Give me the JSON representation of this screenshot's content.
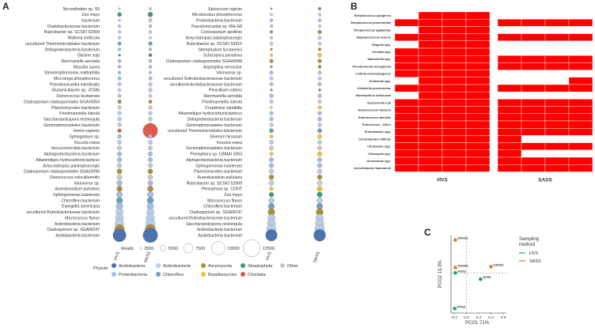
{
  "panels": {
    "a": "A",
    "b": "B",
    "c": "C"
  },
  "colors": {
    "Acidobacteria": "#4a72b0",
    "Proteobacteria": "#a9bbe4",
    "Actinobacteria": "#b9cde9",
    "Chloroflexi": "#6fa0bd",
    "Ascomycota": "#b08d3b",
    "Basidiomycota": "#f0c23a",
    "Streptophyta": "#3a9a75",
    "Chordata": "#e05a4a",
    "Other": "#c9c9c9",
    "heat_on": "#ff0000",
    "HVS": "#1aa47a",
    "SASS": "#e0772e"
  },
  "dotplot": {
    "left_group": {
      "species": [
        {
          "name": "Nocardioides sp. S5",
          "phylum": "Actinobacteria",
          "hvs": 200,
          "sass": 400
        },
        {
          "name": "Zea mays",
          "phylum": "Streptophyta",
          "hvs": 900,
          "sass": 1300
        },
        {
          "name": "bacterium",
          "phylum": "Other",
          "hvs": 300,
          "sass": 700
        },
        {
          "name": "Oxalobacteraceae bacterium",
          "phylum": "Proteobacteria",
          "hvs": 400,
          "sass": 500
        },
        {
          "name": "Rubrobacter sp. SCSIO 52909",
          "phylum": "Actinobacteria",
          "hvs": 500,
          "sass": 600
        },
        {
          "name": "Walteria mellicola",
          "phylum": "Actinobacteria",
          "hvs": 500,
          "sass": 400
        },
        {
          "name": "uncultured Thermomicrobiales bacterium",
          "phylum": "Chloroflexi",
          "hvs": 700,
          "sass": 800
        },
        {
          "name": "Deltaproteobacteria bacterium",
          "phylum": "Proteobacteria",
          "hvs": 500,
          "sass": 500
        },
        {
          "name": "Glycine soja",
          "phylum": "Streptophyta",
          "hvs": 300,
          "sass": 600
        },
        {
          "name": "Skermanella aerolata",
          "phylum": "Proteobacteria",
          "hvs": 600,
          "sass": 600
        },
        {
          "name": "Massilia aurea",
          "phylum": "Proteobacteria",
          "hvs": 500,
          "sass": 500
        },
        {
          "name": "Stenotrophomonas maltophilia",
          "phylum": "Proteobacteria",
          "hvs": 500,
          "sass": 400
        },
        {
          "name": "Microvirga phosphovorus",
          "phylum": "Proteobacteria",
          "hvs": 700,
          "sass": 700
        },
        {
          "name": "Pseudonocardia intestinalis",
          "phylum": "Actinobacteria",
          "hvs": 700,
          "sass": 800
        },
        {
          "name": "Glutamicibacter sp. JC586",
          "phylum": "Actinobacteria",
          "hvs": 600,
          "sass": 900
        },
        {
          "name": "Deinococcus budaensis",
          "phylum": "Other",
          "hvs": 700,
          "sass": 600
        },
        {
          "name": "Cladosporium cladosporioides SGAir0054",
          "phylum": "Ascomycota",
          "hvs": 800,
          "sass": 700
        },
        {
          "name": "Planctomycetes bacterium",
          "phylum": "Other",
          "hvs": 800,
          "sass": 800
        },
        {
          "name": "Friedmanniella luteola",
          "phylum": "Actinobacteria",
          "hvs": 800,
          "sass": 800
        },
        {
          "name": "Saccharopolyspora rectivirgula",
          "phylum": "Actinobacteria",
          "hvs": 900,
          "sass": 900
        },
        {
          "name": "Gemmatimonadetes bacterium",
          "phylum": "Other",
          "hvs": 900,
          "sass": 900
        },
        {
          "name": "Homo sapiens",
          "phylum": "Chordata",
          "hvs": 800,
          "sass": 12000
        },
        {
          "name": "Sphingobium sp.",
          "phylum": "Proteobacteria",
          "hvs": 900,
          "sass": 900
        },
        {
          "name": "Kocuria rosea",
          "phylum": "Actinobacteria",
          "hvs": 1000,
          "sass": 1000
        },
        {
          "name": "Verrucomicrobia bacterium",
          "phylum": "Other",
          "hvs": 1000,
          "sass": 1000
        },
        {
          "name": "Alphaproteobacteria bacterium",
          "phylum": "Proteobacteria",
          "hvs": 1100,
          "sass": 1100
        },
        {
          "name": "Alkanindiges hydrocarboniclasticus",
          "phylum": "Proteobacteria",
          "hvs": 1200,
          "sass": 1100
        },
        {
          "name": "Amycolatopsis palatopharyngis",
          "phylum": "Actinobacteria",
          "hvs": 1300,
          "sass": 1200
        },
        {
          "name": "Cladosporium cladosporioides SGAir0096",
          "phylum": "Ascomycota",
          "hvs": 1400,
          "sass": 1300
        },
        {
          "name": "Deinococcus reticulitermitis",
          "phylum": "Other",
          "hvs": 1400,
          "sass": 1300
        },
        {
          "name": "Variovorax sp.",
          "phylum": "Proteobacteria",
          "hvs": 1600,
          "sass": 1400
        },
        {
          "name": "Aureobasidium pullulans",
          "phylum": "Ascomycota",
          "hvs": 1700,
          "sass": 1800
        },
        {
          "name": "Sphingomonas kaistensis",
          "phylum": "Proteobacteria",
          "hvs": 1900,
          "sass": 2000
        },
        {
          "name": "Chloroflexi bacterium",
          "phylum": "Chloroflexi",
          "hvs": 2200,
          "sass": 2300
        },
        {
          "name": "Ewingella americana",
          "phylum": "Proteobacteria",
          "hvs": 2600,
          "sass": 2500
        },
        {
          "name": "uncultured Rubrobacteraceae bacterium",
          "phylum": "Actinobacteria",
          "hvs": 3000,
          "sass": 3000
        },
        {
          "name": "Micrococcus flavus",
          "phylum": "Actinobacteria",
          "hvs": 3600,
          "sass": 3800
        },
        {
          "name": "Actinobacteria bacterium",
          "phylum": "Actinobacteria",
          "hvs": 4300,
          "sass": 4800
        },
        {
          "name": "Cladosporium sp. SGAIR247",
          "phylum": "Ascomycota",
          "hvs": 5400,
          "sass": 6000
        },
        {
          "name": "Acidobacteria bacterium",
          "phylum": "Acidobacteria",
          "hvs": 9500,
          "sass": 12000
        }
      ],
      "columns": [
        "HVS",
        "SASS"
      ]
    },
    "right_group": {
      "species": [
        {
          "name": "Epicoccum nigrum",
          "phylum": "Ascomycota",
          "hvs": 200,
          "sass": 500
        },
        {
          "name": "Microlunatus phosphovorus",
          "phylum": "Actinobacteria",
          "hvs": 400,
          "sass": 500
        },
        {
          "name": "Proteobacteria bacterium",
          "phylum": "Proteobacteria",
          "hvs": 500,
          "sass": 600
        },
        {
          "name": "Pseudonocardia sp. MH-G8",
          "phylum": "Actinobacteria",
          "hvs": 500,
          "sass": 500
        },
        {
          "name": "Coniosporium apollinis",
          "phylum": "Ascomycota",
          "hvs": 500,
          "sass": 800
        },
        {
          "name": "Amycolatopsis palatopharyngis",
          "phylum": "Actinobacteria",
          "hvs": 500,
          "sass": 700
        },
        {
          "name": "Rubrobacter sp. SCSIO 52915",
          "phylum": "Actinobacteria",
          "hvs": 600,
          "sass": 600
        },
        {
          "name": "Stemphylium lycopersici",
          "phylum": "Ascomycota",
          "hvs": 300,
          "sass": 500
        },
        {
          "name": "Schizopora paradoxa",
          "phylum": "Basidiomycota",
          "hvs": 400,
          "sass": 900
        },
        {
          "name": "Cladosporium cladosporioides SGAir0098",
          "phylum": "Ascomycota",
          "hvs": 800,
          "sass": 800
        },
        {
          "name": "Aspergillus versicolor",
          "phylum": "Ascomycota",
          "hvs": 300,
          "sass": 600
        },
        {
          "name": "Variovorax sp.",
          "phylum": "Proteobacteria",
          "hvs": 700,
          "sass": 700
        },
        {
          "name": "uncultured Solirubrobacteraceae bacterium",
          "phylum": "Actinobacteria",
          "hvs": 700,
          "sass": 700
        },
        {
          "name": "uncultured Acetobacteraceae bacterium",
          "phylum": "Proteobacteria",
          "hvs": 700,
          "sass": 700
        },
        {
          "name": "Penicillium rubens",
          "phylum": "Ascomycota",
          "hvs": 300,
          "sass": 400
        },
        {
          "name": "Skermanella aerolata",
          "phylum": "Proteobacteria",
          "hvs": 800,
          "sass": 800
        },
        {
          "name": "Friedmanniella luteola",
          "phylum": "Actinobacteria",
          "hvs": 800,
          "sass": 800
        },
        {
          "name": "Crepidotus variabilis",
          "phylum": "Basidiomycota",
          "hvs": 300,
          "sass": 700
        },
        {
          "name": "Alkanindiges hydrocarboniclasticus",
          "phylum": "Proteobacteria",
          "hvs": 800,
          "sass": 800
        },
        {
          "name": "Deltaproteobacteria bacterium",
          "phylum": "Proteobacteria",
          "hvs": 800,
          "sass": 900
        },
        {
          "name": "Gemmatimonadetes bacterium",
          "phylum": "Other",
          "hvs": 900,
          "sass": 900
        },
        {
          "name": "uncultured Thermomicrobiales bacterium",
          "phylum": "Chloroflexi",
          "hvs": 1000,
          "sass": 1000
        },
        {
          "name": "Stereum hirsutum",
          "phylum": "Basidiomycota",
          "hvs": 600,
          "sass": 1000
        },
        {
          "name": "Kocuria rosea",
          "phylum": "Actinobacteria",
          "hvs": 1000,
          "sass": 1000
        },
        {
          "name": "Gemmatimonadetes bacterium",
          "phylum": "Other",
          "hvs": 1000,
          "sass": 1000
        },
        {
          "name": "Peniophora sp. CBMAI 1063",
          "phylum": "Basidiomycota",
          "hvs": 700,
          "sass": 1100
        },
        {
          "name": "Alphaproteobacteria bacterium",
          "phylum": "Proteobacteria",
          "hvs": 1100,
          "sass": 1100
        },
        {
          "name": "Sphingomonas kaistensis",
          "phylum": "Proteobacteria",
          "hvs": 1200,
          "sass": 1200
        },
        {
          "name": "Planctomycetes bacterium",
          "phylum": "Other",
          "hvs": 1200,
          "sass": 1200
        },
        {
          "name": "Aureobasidium pullulans",
          "phylum": "Ascomycota",
          "hvs": 1300,
          "sass": 1300
        },
        {
          "name": "Rubrobacter sp. SCSIO 52909",
          "phylum": "Actinobacteria",
          "hvs": 1400,
          "sass": 1400
        },
        {
          "name": "Peniophora sp. CONT",
          "phylum": "Basidiomycota",
          "hvs": 800,
          "sass": 1500
        },
        {
          "name": "Zea mays",
          "phylum": "Streptophyta",
          "hvs": 1200,
          "sass": 1500
        },
        {
          "name": "Micrococcus flavus",
          "phylum": "Actinobacteria",
          "hvs": 1700,
          "sass": 1800
        },
        {
          "name": "Chloroflexi bacterium",
          "phylum": "Chloroflexi",
          "hvs": 2000,
          "sass": 2000
        },
        {
          "name": "Cladosporium sp. SGAIR247",
          "phylum": "Ascomycota",
          "hvs": 2600,
          "sass": 2800
        },
        {
          "name": "uncultured Rubrobacteraceae bacterium",
          "phylum": "Actinobacteria",
          "hvs": 3000,
          "sass": 3200
        },
        {
          "name": "Saccharopolyspora rectivirgula",
          "phylum": "Actinobacteria",
          "hvs": 3800,
          "sass": 4200
        },
        {
          "name": "Actinobacteria bacterium",
          "phylum": "Actinobacteria",
          "hvs": 4800,
          "sass": 5200
        },
        {
          "name": "Acidobacteria bacterium",
          "phylum": "Acidobacteria",
          "hvs": 7500,
          "sass": 8000
        }
      ],
      "columns": [
        "HVS",
        "SASS"
      ]
    },
    "size_legend": {
      "title": "Reads",
      "values": [
        2500,
        5000,
        7500,
        10000,
        12500
      ]
    },
    "phylum_legend": {
      "title": "Phylum",
      "items": [
        "Acidobacteria",
        "Actinobacteria",
        "Ascomycota",
        "Streptophyta",
        "Other",
        "Proteobacteria",
        "Chloroflexi",
        "Basidiomycota",
        "Chordata"
      ]
    }
  },
  "heatmap": {
    "rows": [
      "Streptococcus pyogenes",
      "Streptococcus pneumoniae",
      "Streptococcus agalactiae",
      "Staphylococcus aureus",
      "Shigella spp.",
      "Serratia spp.",
      "Salmonella spp.",
      "Pseudomonas aeruginosa",
      "Listeria monocytogenes",
      "Klebsiella spp.",
      "Klebsiella pneumoniae",
      "Haemophilus influenzae",
      "Escherichia coli",
      "Enterococcus faecium",
      "Enterococcus faecalis",
      "Enterococci - Other",
      "Enterobacter spp.",
      "Clostridioides difficile",
      "Citrobacter spp.",
      "Chlamydia spp.",
      "Aeromonas spp.",
      "Acinetobacter baumannii"
    ],
    "groups": [
      {
        "label": "HVS",
        "cells": [
          [
            0,
            1,
            1,
            1
          ],
          [
            1,
            1,
            1,
            1
          ],
          [
            0,
            1,
            1,
            1
          ],
          [
            1,
            1,
            1,
            1
          ],
          [
            0,
            1,
            1,
            1
          ],
          [
            1,
            1,
            1,
            1
          ],
          [
            1,
            1,
            1,
            1
          ],
          [
            1,
            1,
            1,
            1
          ],
          [
            1,
            1,
            1,
            1
          ],
          [
            0,
            1,
            1,
            1
          ],
          [
            1,
            1,
            1,
            1
          ],
          [
            0,
            1,
            1,
            1
          ],
          [
            1,
            1,
            1,
            1
          ],
          [
            1,
            1,
            1,
            1
          ],
          [
            1,
            1,
            1,
            1
          ],
          [
            1,
            1,
            1,
            1
          ],
          [
            1,
            1,
            1,
            1
          ],
          [
            1,
            1,
            1,
            1
          ],
          [
            1,
            1,
            1,
            1
          ],
          [
            1,
            1,
            1,
            1
          ],
          [
            1,
            1,
            1,
            1
          ],
          [
            1,
            1,
            1,
            1
          ]
        ]
      },
      {
        "label": "SASS",
        "cells": [
          [
            0,
            0,
            0,
            0
          ],
          [
            1,
            1,
            1,
            1
          ],
          [
            0,
            0,
            0,
            0
          ],
          [
            1,
            1,
            1,
            1
          ],
          [
            0,
            0,
            0,
            0
          ],
          [
            0,
            0,
            0,
            0
          ],
          [
            1,
            1,
            1,
            1
          ],
          [
            1,
            1,
            1,
            1
          ],
          [
            0,
            0,
            0,
            0
          ],
          [
            0,
            0,
            0,
            1
          ],
          [
            1,
            1,
            1,
            1
          ],
          [
            0,
            0,
            0,
            0
          ],
          [
            1,
            1,
            1,
            1
          ],
          [
            1,
            1,
            1,
            1
          ],
          [
            1,
            1,
            1,
            1
          ],
          [
            1,
            1,
            1,
            1
          ],
          [
            1,
            1,
            1,
            1
          ],
          [
            1,
            0,
            0,
            0
          ],
          [
            1,
            1,
            1,
            1
          ],
          [
            1,
            0,
            0,
            0
          ],
          [
            1,
            1,
            1,
            1
          ],
          [
            1,
            1,
            1,
            1
          ]
        ]
      }
    ]
  },
  "chart_data": {
    "type": "scatter",
    "xlabel": "PCO1  71%",
    "ylabel": "PCO2  13.3%",
    "xlim": [
      -0.25,
      0.65
    ],
    "ylim": [
      -0.45,
      0.42
    ],
    "xticks": [
      -0.2,
      0.0,
      0.2,
      0.4,
      0.6
    ],
    "xticklabels": [
      "-0.2",
      "0.0",
      "0.2",
      "0.4",
      "0.6"
    ],
    "points": [
      {
        "label": "SASS2",
        "group": "SASS",
        "x": -0.18,
        "y": 0.37
      },
      {
        "label": "SASS3",
        "group": "SASS",
        "x": -0.18,
        "y": 0.06
      },
      {
        "label": "SASS1",
        "group": "SASS",
        "x": 0.4,
        "y": 0.07
      },
      {
        "label": "HVS2",
        "group": "HVS",
        "x": -0.18,
        "y": 0.0
      },
      {
        "label": "HVS1",
        "group": "HVS",
        "x": 0.23,
        "y": -0.07
      },
      {
        "label": "HVS3",
        "group": "HVS",
        "x": -0.19,
        "y": -0.4
      }
    ],
    "legend": {
      "title": "Sampling method",
      "items": [
        "HVS",
        "SASS"
      ],
      "placement": "right"
    }
  }
}
